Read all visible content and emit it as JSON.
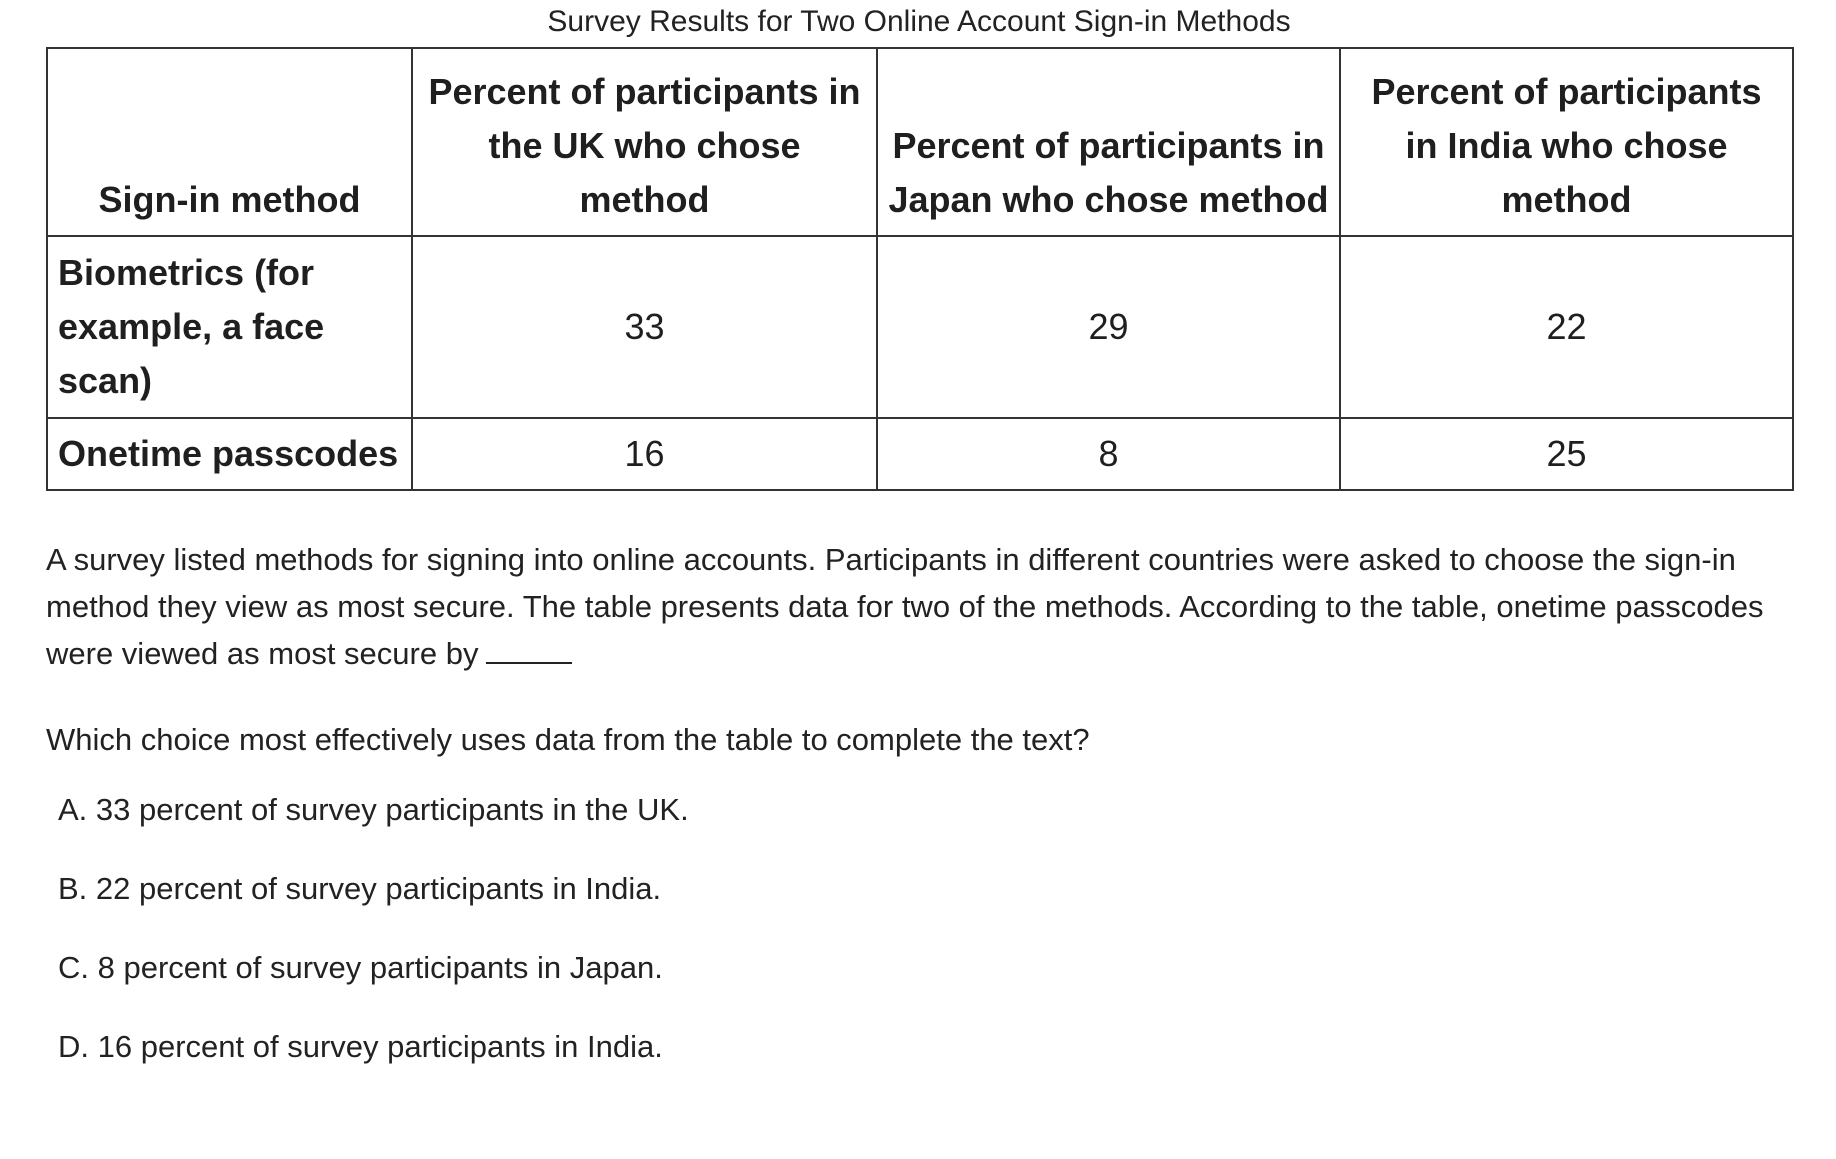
{
  "table": {
    "title": "Survey Results for Two Online Account Sign-in Methods",
    "headers": [
      "Sign-in method",
      "Percent of participants in the UK who chose method",
      "Percent of participants in Japan who chose method",
      "Percent of participants in India who chose method"
    ],
    "rows": [
      {
        "method": "Biometrics (for example, a face scan)",
        "uk": "33",
        "japan": "29",
        "india": "22"
      },
      {
        "method": "Onetime passcodes",
        "uk": "16",
        "japan": "8",
        "india": "25"
      }
    ]
  },
  "passage": "A survey listed methods for signing into online accounts. Participants in different countries were asked to choose the sign-in method they view as most secure. The table presents data for two of the methods. According to the table, onetime passcodes were viewed as most secure by",
  "question": "Which choice most effectively uses data from the table to complete the text?",
  "choices": [
    {
      "letter": "A.",
      "text": "33 percent of survey participants in the UK."
    },
    {
      "letter": "B.",
      "text": "22 percent of survey participants in India."
    },
    {
      "letter": "C.",
      "text": "8 percent of survey participants in Japan."
    },
    {
      "letter": "D.",
      "text": "16 percent of survey participants in India."
    }
  ]
}
